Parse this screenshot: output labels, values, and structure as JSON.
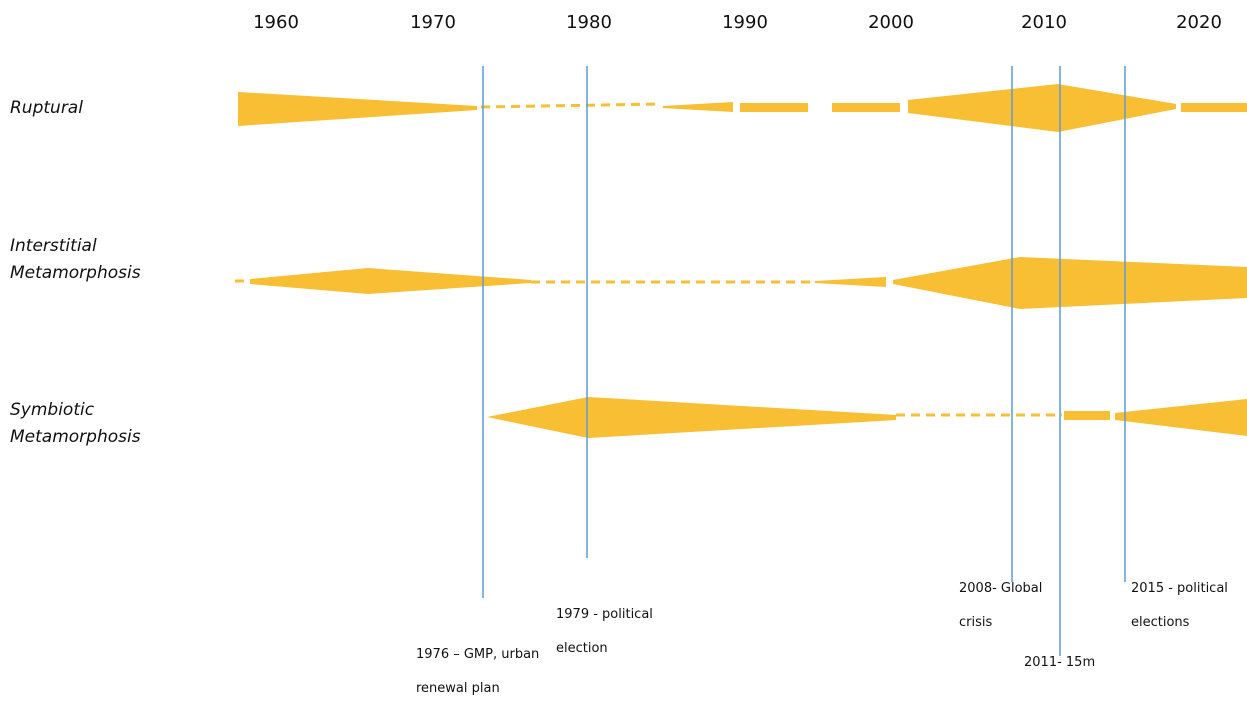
{
  "years": [
    "1960",
    "1970",
    "1980",
    "1990",
    "2000",
    "2010",
    "2020"
  ],
  "rows": [
    {
      "line1": "Ruptural",
      "line2": ""
    },
    {
      "line1": "Interstitial",
      "line2": "Metamorphosis"
    },
    {
      "line1": "Symbiotic",
      "line2": "Metamorphosis"
    }
  ],
  "events": [
    {
      "line1": "1976 – GMP, urban",
      "line2": "renewal plan"
    },
    {
      "line1": "1979 - political",
      "line2": "election"
    },
    {
      "line1": "2008- Global",
      "line2": "crisis"
    },
    {
      "line1": "2011- 15m",
      "line2": ""
    },
    {
      "line1": "2015 - political",
      "line2": "elections"
    }
  ],
  "colors": {
    "band": "#F8BE34",
    "event_line": "#5B9BD5",
    "text": "#111111"
  }
}
